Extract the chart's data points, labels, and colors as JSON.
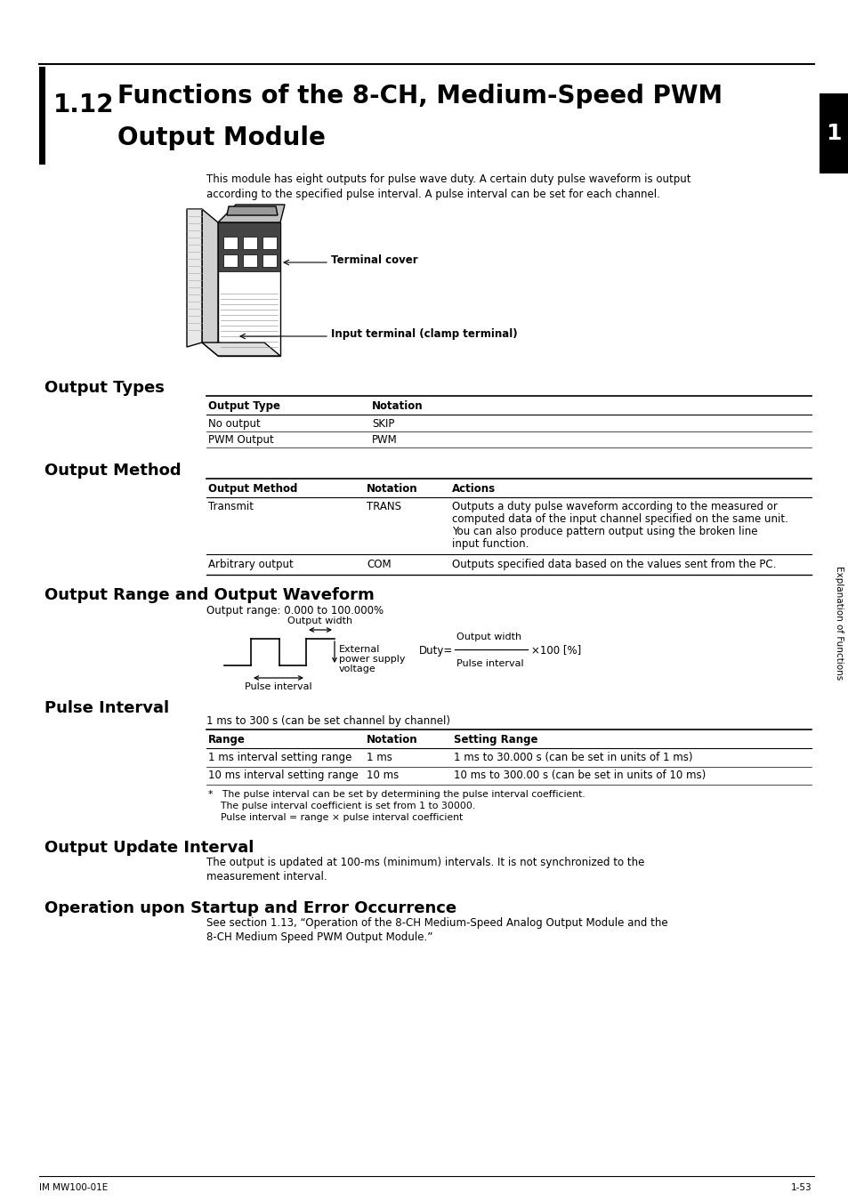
{
  "title_number": "1.12",
  "title_line1": "Functions of the 8-CH, Medium-Speed PWM",
  "title_line2": "Output Module",
  "intro_line1": "This module has eight outputs for pulse wave duty. A certain duty pulse waveform is output",
  "intro_line2": "according to the specified pulse interval. A pulse interval can be set for each channel.",
  "terminal_cover_label": "Terminal cover",
  "input_terminal_label": "Input terminal (clamp terminal)",
  "section_output_types": "Output Types",
  "output_types_headers": [
    "Output Type",
    "Notation"
  ],
  "output_types_rows": [
    [
      "No output",
      "SKIP"
    ],
    [
      "PWM Output",
      "PWM"
    ]
  ],
  "section_output_method": "Output Method",
  "output_method_headers": [
    "Output Method",
    "Notation",
    "Actions"
  ],
  "output_method_rows_r1": [
    "Transmit",
    "TRANS"
  ],
  "output_method_r1_action": [
    "Outputs a duty pulse waveform according to the measured or",
    "computed data of the input channel specified on the same unit.",
    "You can also produce pattern output using the broken line",
    "input function."
  ],
  "output_method_rows_r2": [
    "Arbitrary output",
    "COM",
    "Outputs specified data based on the values sent from the PC."
  ],
  "section_output_range": "Output Range and Output Waveform",
  "output_range_text": "Output range: 0.000 to 100.000%",
  "output_width_label": "Output width",
  "external_label_lines": [
    "External",
    "power supply",
    "voltage"
  ],
  "pulse_interval_label": "Pulse interval",
  "duty_formula": "Duty=",
  "duty_numerator": "Output width",
  "duty_denominator": "Pulse interval",
  "duty_suffix": "×100 [%]",
  "section_pulse_interval": "Pulse Interval",
  "pulse_interval_text": "1 ms to 300 s (can be set channel by channel)",
  "pulse_interval_headers": [
    "Range",
    "Notation",
    "Setting Range"
  ],
  "pulse_interval_rows": [
    [
      "1 ms interval setting range",
      "1 ms",
      "1 ms to 30.000 s (can be set in units of 1 ms)"
    ],
    [
      "10 ms interval setting range",
      "10 ms",
      "10 ms to 300.00 s (can be set in units of 10 ms)"
    ]
  ],
  "pulse_note_lines": [
    "*   The pulse interval can be set by determining the pulse interval coefficient.",
    "    The pulse interval coefficient is set from 1 to 30000.",
    "    Pulse interval = range × pulse interval coefficient"
  ],
  "section_output_update": "Output Update Interval",
  "output_update_lines": [
    "The output is updated at 100-ms (minimum) intervals. It is not synchronized to the",
    "measurement interval."
  ],
  "section_operation": "Operation upon Startup and Error Occurrence",
  "operation_lines": [
    "See section 1.13, “Operation of the 8-CH Medium-Speed Analog Output Module and the",
    "8-CH Medium Speed PWM Output Module.”"
  ],
  "sidebar_text": "Explanation of Functions",
  "sidebar_number": "1",
  "footer_left": "IM MW100-01E",
  "footer_right": "1-53",
  "bg_color": "#ffffff",
  "text_color": "#000000"
}
